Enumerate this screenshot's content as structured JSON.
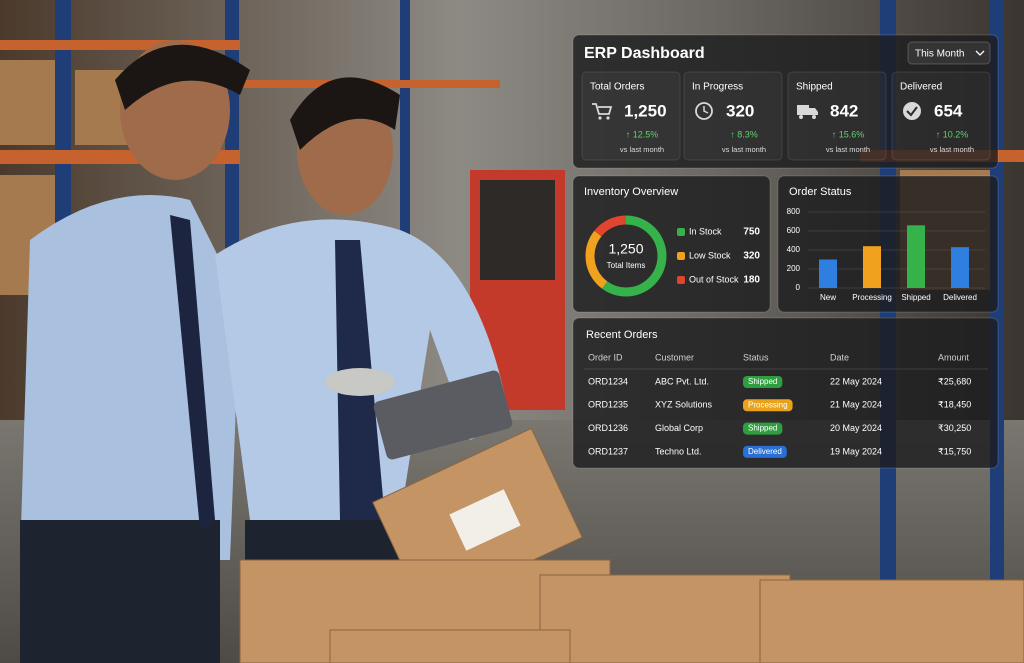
{
  "dashboard": {
    "title": "ERP Dashboard",
    "period": "This Month",
    "kpis": [
      {
        "label": "Total Orders",
        "value": "1,250",
        "change": "↑ 12.5%",
        "note": "vs last month"
      },
      {
        "label": "In Progress",
        "value": "320",
        "change": "↑ 8.3%",
        "note": "vs last month"
      },
      {
        "label": "Shipped",
        "value": "842",
        "change": "↑ 15.6%",
        "note": "vs last month"
      },
      {
        "label": "Delivered",
        "value": "654",
        "change": "↑ 10.2%",
        "note": "vs last month"
      }
    ],
    "inventory": {
      "title": "Inventory Overview",
      "total": "1,250",
      "total_label": "Total Items",
      "items": [
        {
          "name": "In Stock",
          "value": 750,
          "color": "#36b24a"
        },
        {
          "name": "Low Stock",
          "value": 320,
          "color": "#f0a21f"
        },
        {
          "name": "Out of Stock",
          "value": 180,
          "color": "#e2452f"
        }
      ]
    },
    "order_status": {
      "type": "bar",
      "title": "Order Status",
      "categories": [
        "New",
        "Processing",
        "Shipped",
        "Delivered"
      ],
      "values": [
        300,
        440,
        660,
        430
      ],
      "colors": [
        "#2f7fe0",
        "#f0a21f",
        "#36b24a",
        "#2f7fe0"
      ],
      "ylim": [
        0,
        800
      ],
      "yticks": [
        0,
        200,
        400,
        600,
        800
      ]
    },
    "recent_orders": {
      "title": "Recent Orders",
      "columns": [
        "Order ID",
        "Customer",
        "Status",
        "Date",
        "Amount"
      ],
      "rows": [
        {
          "cells": [
            "ORD1234",
            "ABC Pvt. Ltd.",
            "Shipped",
            "22 May 2024",
            "₹25,680"
          ],
          "status_color": "#2e9e3e"
        },
        {
          "cells": [
            "ORD1235",
            "XYZ Solutions",
            "Processing",
            "21 May 2024",
            "₹18,450"
          ],
          "status_color": "#e8a21c"
        },
        {
          "cells": [
            "ORD1236",
            "Global Corp",
            "Shipped",
            "20 May 2024",
            "₹30,250"
          ],
          "status_color": "#2e9e3e"
        },
        {
          "cells": [
            "ORD1237",
            "Techno Ltd.",
            "Delivered",
            "19 May 2024",
            "₹15,750"
          ],
          "status_color": "#2a6fd6"
        }
      ]
    }
  }
}
